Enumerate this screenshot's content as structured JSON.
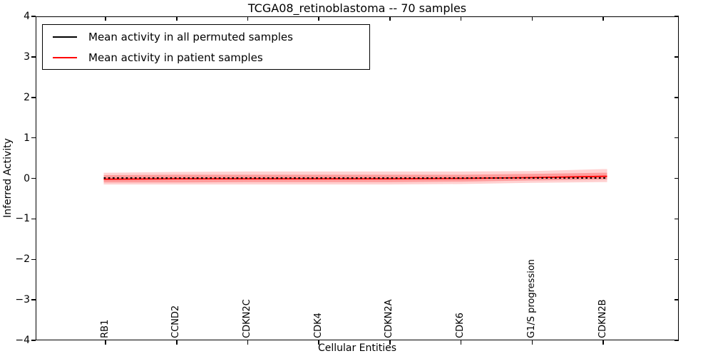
{
  "figure": {
    "background": "#ffffff",
    "frame_color": "#000000"
  },
  "chart_data": {
    "type": "line",
    "title": "TCGA08_retinoblastoma -- 70 samples",
    "xlabel": "Cellular Entities",
    "ylabel": "Inferred Activity",
    "ylim": [
      -4,
      4
    ],
    "grid": false,
    "legend_position": "upper left",
    "ytick_values": [
      4,
      3,
      2,
      1,
      0,
      -1,
      -2,
      -3,
      -4
    ],
    "ytick_labels": [
      "4",
      "3",
      "2",
      "1",
      "0",
      "−1",
      "−2",
      "−3",
      "−4"
    ],
    "categories": [
      "RB1",
      "CCND2",
      "CDKN2C",
      "CDK4",
      "CDKN2A",
      "CDK6",
      "G1/S progression",
      "CDKN2B"
    ],
    "series": [
      {
        "name": "Mean activity in all permuted samples",
        "color": "#000000",
        "style": "dashed",
        "values": [
          0.0,
          0.0,
          0.0,
          0.0,
          0.0,
          0.0,
          0.0,
          0.0
        ]
      },
      {
        "name": "Mean activity in patient samples",
        "color": "#ff0000",
        "style": "solid",
        "values": [
          -0.03,
          -0.02,
          -0.02,
          -0.02,
          -0.02,
          -0.01,
          0.01,
          0.04
        ]
      }
    ],
    "bands": [
      {
        "name": "patient-std-outer",
        "color": "#ff0000",
        "opacity": 0.18,
        "upper": [
          0.13,
          0.15,
          0.16,
          0.16,
          0.16,
          0.16,
          0.17,
          0.22
        ],
        "lower": [
          -0.16,
          -0.16,
          -0.16,
          -0.16,
          -0.16,
          -0.15,
          -0.12,
          -0.1
        ]
      },
      {
        "name": "patient-std-inner",
        "color": "#ff0000",
        "opacity": 0.25,
        "upper": [
          0.07,
          0.08,
          0.08,
          0.08,
          0.08,
          0.08,
          0.1,
          0.13
        ],
        "lower": [
          -0.11,
          -0.11,
          -0.1,
          -0.1,
          -0.1,
          -0.09,
          -0.06,
          -0.04
        ]
      }
    ]
  }
}
